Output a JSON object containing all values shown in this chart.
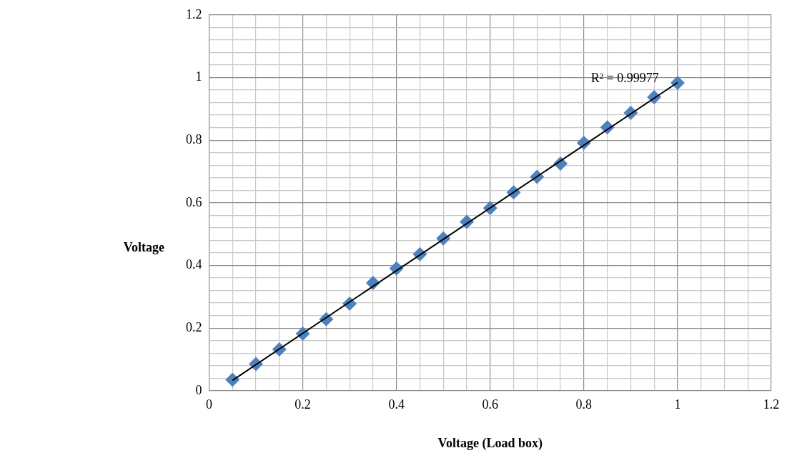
{
  "chart_data": {
    "type": "scatter",
    "xlabel": "Voltage (Load box)",
    "ylabel": "Voltage",
    "x": [
      0.05,
      0.1,
      0.15,
      0.2,
      0.25,
      0.3,
      0.35,
      0.4,
      0.45,
      0.5,
      0.55,
      0.6,
      0.65,
      0.7,
      0.75,
      0.8,
      0.85,
      0.9,
      0.95,
      1.0
    ],
    "series": [
      {
        "marker": "diamond",
        "color": "#4f81bd",
        "values": [
          0.035,
          0.085,
          0.132,
          0.182,
          0.228,
          0.278,
          0.344,
          0.39,
          0.436,
          0.486,
          0.539,
          0.583,
          0.633,
          0.683,
          0.725,
          0.791,
          0.841,
          0.887,
          0.937,
          0.983
        ]
      },
      {
        "type": "line",
        "marker": "none",
        "color": "#000000",
        "x": [
          0.05,
          1.0
        ],
        "values": [
          0.033,
          0.984
        ]
      }
    ],
    "grid": true,
    "legend": false,
    "xlim": [
      0,
      1.2
    ],
    "ylim": [
      0,
      1.2
    ],
    "xticks": [
      0,
      {
        "value": 0.05,
        "label": null
      },
      {
        "value": 0.1,
        "label": null
      },
      {
        "value": 0.15,
        "label": null
      },
      0.2,
      {
        "value": 0.25,
        "label": null
      },
      {
        "value": 0.3,
        "label": null
      },
      {
        "value": 0.35,
        "label": null
      },
      0.4,
      {
        "value": 0.45,
        "label": null
      },
      {
        "value": 0.5,
        "label": null
      },
      {
        "value": 0.55,
        "label": null
      },
      0.6,
      {
        "value": 0.65,
        "label": null
      },
      {
        "value": 0.7,
        "label": null
      },
      {
        "value": 0.75,
        "label": null
      },
      0.8,
      {
        "value": 0.85,
        "label": null
      },
      {
        "value": 0.9,
        "label": null
      },
      {
        "value": 0.95,
        "label": null
      },
      1,
      {
        "value": 1.05,
        "label": null
      },
      {
        "value": 1.1,
        "label": null
      },
      {
        "value": 1.15,
        "label": null
      },
      1.2
    ],
    "yticks": [
      0,
      {
        "value": 0.04,
        "label": null
      },
      {
        "value": 0.08,
        "label": null
      },
      {
        "value": 0.12,
        "label": null
      },
      {
        "value": 0.16,
        "label": null
      },
      0.2,
      {
        "value": 0.24,
        "label": null
      },
      {
        "value": 0.28,
        "label": null
      },
      {
        "value": 0.32,
        "label": null
      },
      {
        "value": 0.36,
        "label": null
      },
      0.4,
      {
        "value": 0.44,
        "label": null
      },
      {
        "value": 0.48,
        "label": null
      },
      {
        "value": 0.52,
        "label": null
      },
      {
        "value": 0.56,
        "label": null
      },
      0.6,
      {
        "value": 0.64,
        "label": null
      },
      {
        "value": 0.68,
        "label": null
      },
      {
        "value": 0.72,
        "label": null
      },
      {
        "value": 0.76,
        "label": null
      },
      0.8,
      {
        "value": 0.84,
        "label": null
      },
      {
        "value": 0.88,
        "label": null
      },
      {
        "value": 0.92,
        "label": null
      },
      {
        "value": 0.96,
        "label": null
      },
      1,
      {
        "value": 1.04,
        "label": null
      },
      {
        "value": 1.08,
        "label": null
      },
      {
        "value": 1.12,
        "label": null
      },
      {
        "value": 1.16,
        "label": null
      },
      1.2
    ],
    "annotations": [
      "R² = 0.99977"
    ]
  }
}
